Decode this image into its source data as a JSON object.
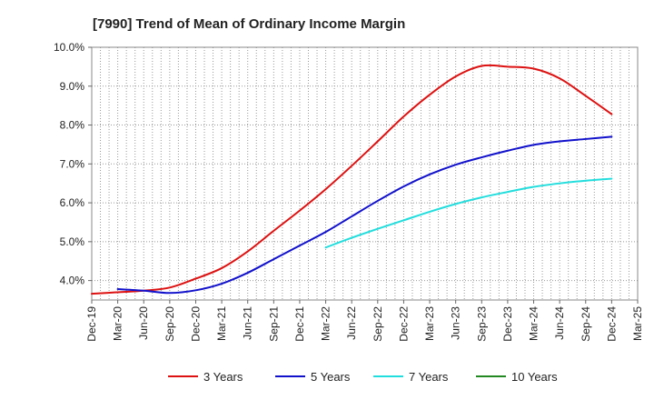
{
  "chart_data": {
    "type": "line",
    "title": "[7990]  Trend of Mean of Ordinary Income Margin",
    "xlabel": "",
    "ylabel": "",
    "x_ticks": [
      "Dec-19",
      "Mar-20",
      "Jun-20",
      "Sep-20",
      "Dec-20",
      "Mar-21",
      "Jun-21",
      "Sep-21",
      "Dec-21",
      "Mar-22",
      "Jun-22",
      "Sep-22",
      "Dec-22",
      "Mar-23",
      "Jun-23",
      "Sep-23",
      "Dec-23",
      "Mar-24",
      "Jun-24",
      "Sep-24",
      "Dec-24",
      "Mar-25"
    ],
    "y_ticks": [
      "4.0%",
      "5.0%",
      "6.0%",
      "7.0%",
      "8.0%",
      "9.0%",
      "10.0%"
    ],
    "ylim": [
      3.5,
      10.0
    ],
    "grid": true,
    "legend_position": "bottom",
    "series": [
      {
        "name": "3 Years",
        "color": "#dd1111",
        "x": [
          "Dec-19",
          "Mar-20",
          "Jun-20",
          "Sep-20",
          "Dec-20",
          "Mar-21",
          "Jun-21",
          "Sep-21",
          "Dec-21",
          "Mar-22",
          "Jun-22",
          "Sep-22",
          "Dec-22",
          "Mar-23",
          "Jun-23",
          "Sep-23",
          "Dec-23",
          "Mar-24",
          "Jun-24",
          "Sep-24",
          "Dec-24"
        ],
        "values": [
          3.66,
          3.7,
          3.74,
          3.82,
          4.05,
          4.32,
          4.75,
          5.28,
          5.8,
          6.35,
          6.95,
          7.58,
          8.22,
          8.78,
          9.25,
          9.52,
          9.5,
          9.45,
          9.2,
          8.75,
          8.28
        ]
      },
      {
        "name": "5 Years",
        "color": "#1111cc",
        "x": [
          "Mar-20",
          "Jun-20",
          "Sep-20",
          "Dec-20",
          "Mar-21",
          "Jun-21",
          "Sep-21",
          "Dec-21",
          "Mar-22",
          "Jun-22",
          "Sep-22",
          "Dec-22",
          "Mar-23",
          "Jun-23",
          "Sep-23",
          "Dec-23",
          "Mar-24",
          "Jun-24",
          "Sep-24",
          "Dec-24"
        ],
        "values": [
          3.78,
          3.74,
          3.68,
          3.75,
          3.92,
          4.2,
          4.55,
          4.9,
          5.25,
          5.65,
          6.05,
          6.42,
          6.73,
          6.98,
          7.17,
          7.34,
          7.49,
          7.58,
          7.64,
          7.7
        ]
      },
      {
        "name": "7 Years",
        "color": "#22dddd",
        "x": [
          "Mar-22",
          "Jun-22",
          "Sep-22",
          "Dec-22",
          "Mar-23",
          "Jun-23",
          "Sep-23",
          "Dec-23",
          "Mar-24",
          "Jun-24",
          "Sep-24",
          "Dec-24"
        ],
        "values": [
          4.85,
          5.1,
          5.33,
          5.55,
          5.77,
          5.97,
          6.14,
          6.28,
          6.41,
          6.5,
          6.57,
          6.62
        ]
      },
      {
        "name": "10 Years",
        "color": "#228822",
        "x": [],
        "values": []
      }
    ]
  }
}
